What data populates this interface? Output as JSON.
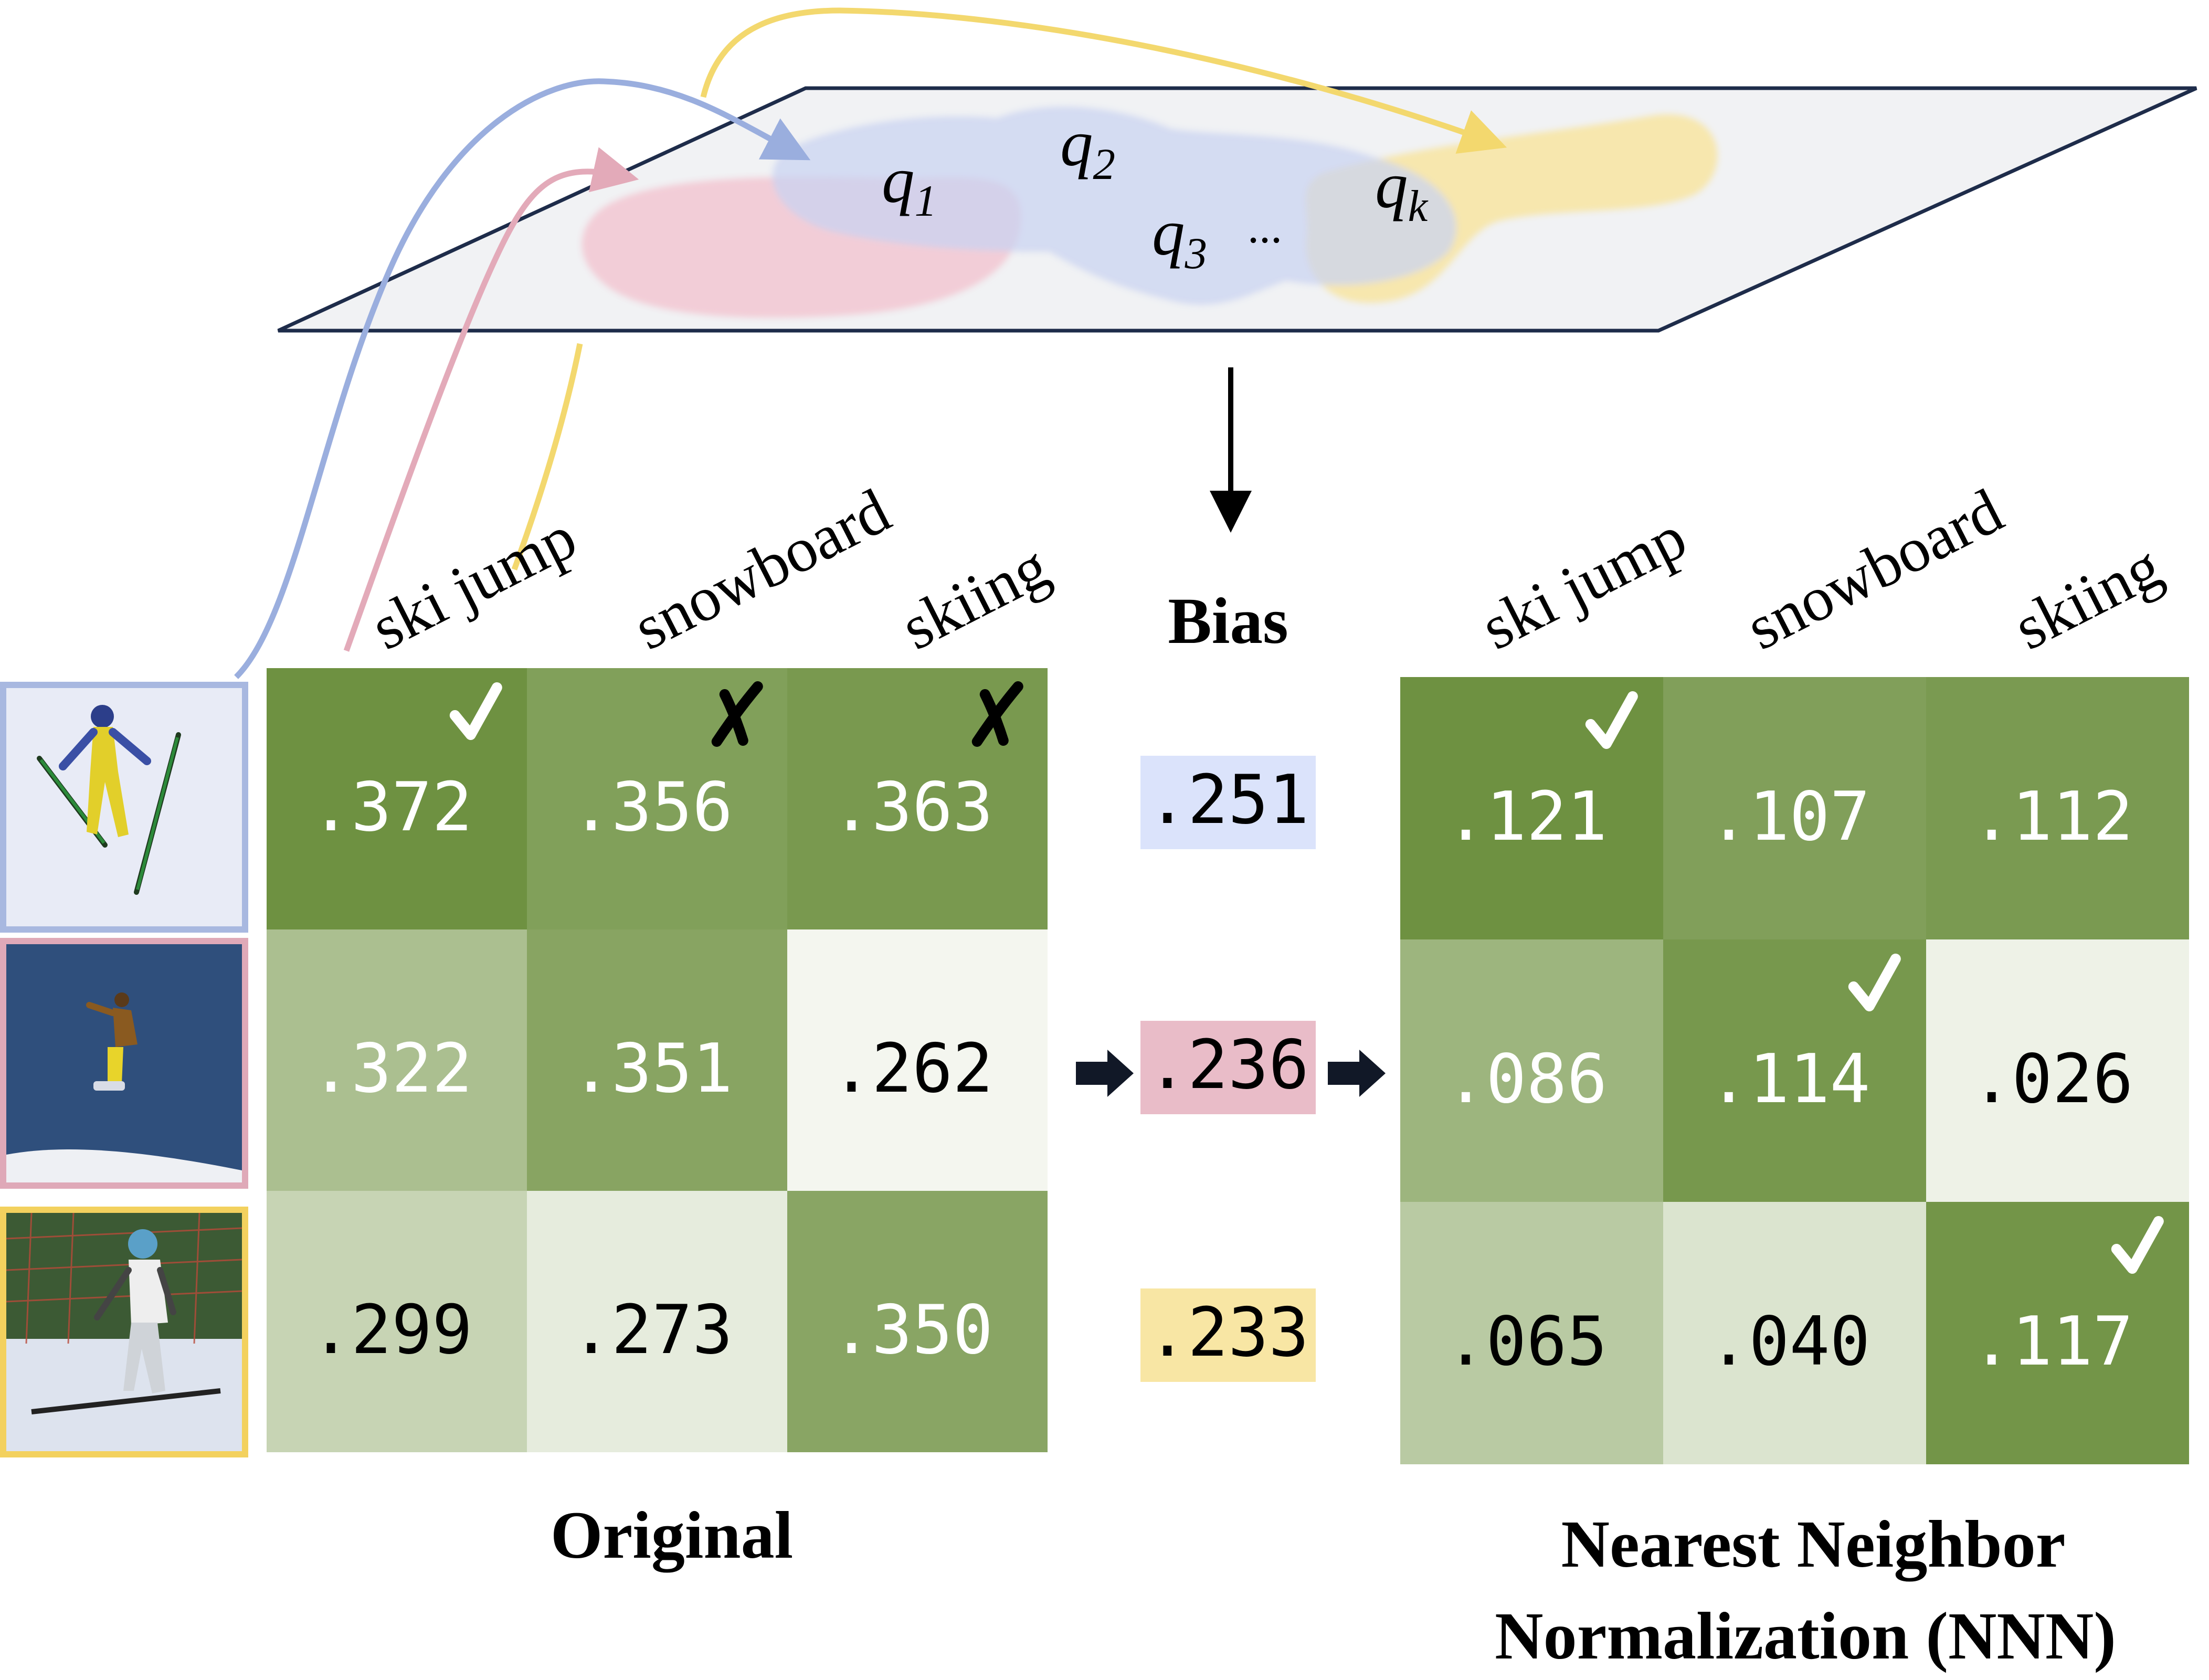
{
  "embedding_plane": {
    "query_labels": [
      {
        "base": "q",
        "sub": "1"
      },
      {
        "base": "q",
        "sub": "2"
      },
      {
        "base": "q",
        "sub": "3"
      },
      {
        "base": "q",
        "sub": "k"
      }
    ],
    "ellipsis": "...",
    "region_colors": {
      "blue": "#c9d3f1",
      "pink": "#f2c7d1",
      "yellow": "#f7e6a6"
    }
  },
  "labels": {
    "bias_header": "Bias",
    "original_caption": "Original",
    "nnn_caption_line1": "Nearest Neighbor",
    "nnn_caption_line2": "Normalization (NNN)"
  },
  "categories": [
    "ski jump",
    "snowboard",
    "skiing"
  ],
  "images": [
    {
      "name": "ski-jump-photo",
      "frame_color": "#a8b8e0"
    },
    {
      "name": "snowboard-photo",
      "frame_color": "#dfa9b8"
    },
    {
      "name": "skiing-photo",
      "frame_color": "#f3d15e"
    }
  ],
  "original": {
    "cells": [
      [
        ".372",
        ".356",
        ".363"
      ],
      [
        ".322",
        ".351",
        ".262"
      ],
      [
        ".299",
        ".273",
        ".350"
      ]
    ],
    "marks": [
      [
        "check",
        "cross",
        "cross"
      ],
      [
        "",
        "",
        ""
      ],
      [
        "",
        "",
        ""
      ]
    ]
  },
  "bias": {
    "values": [
      ".251",
      ".236",
      ".233"
    ],
    "colors": [
      "#dbe3fb",
      "#e9bcc8",
      "#f8e6a4"
    ]
  },
  "nnn": {
    "cells": [
      [
        ".121",
        ".107",
        ".112"
      ],
      [
        ".086",
        ".114",
        ".026"
      ],
      [
        ".065",
        ".040",
        ".117"
      ]
    ],
    "marks": [
      [
        "check",
        "",
        ""
      ],
      [
        "",
        "check",
        ""
      ],
      [
        "",
        "",
        "check"
      ]
    ]
  },
  "colors": {
    "arrow_blue": "#9aaede",
    "arrow_pink": "#e3aab9",
    "arrow_yellow": "#f3d86e",
    "plane_fill": "#f1f2f4",
    "plane_stroke": "#1e2c4a"
  }
}
